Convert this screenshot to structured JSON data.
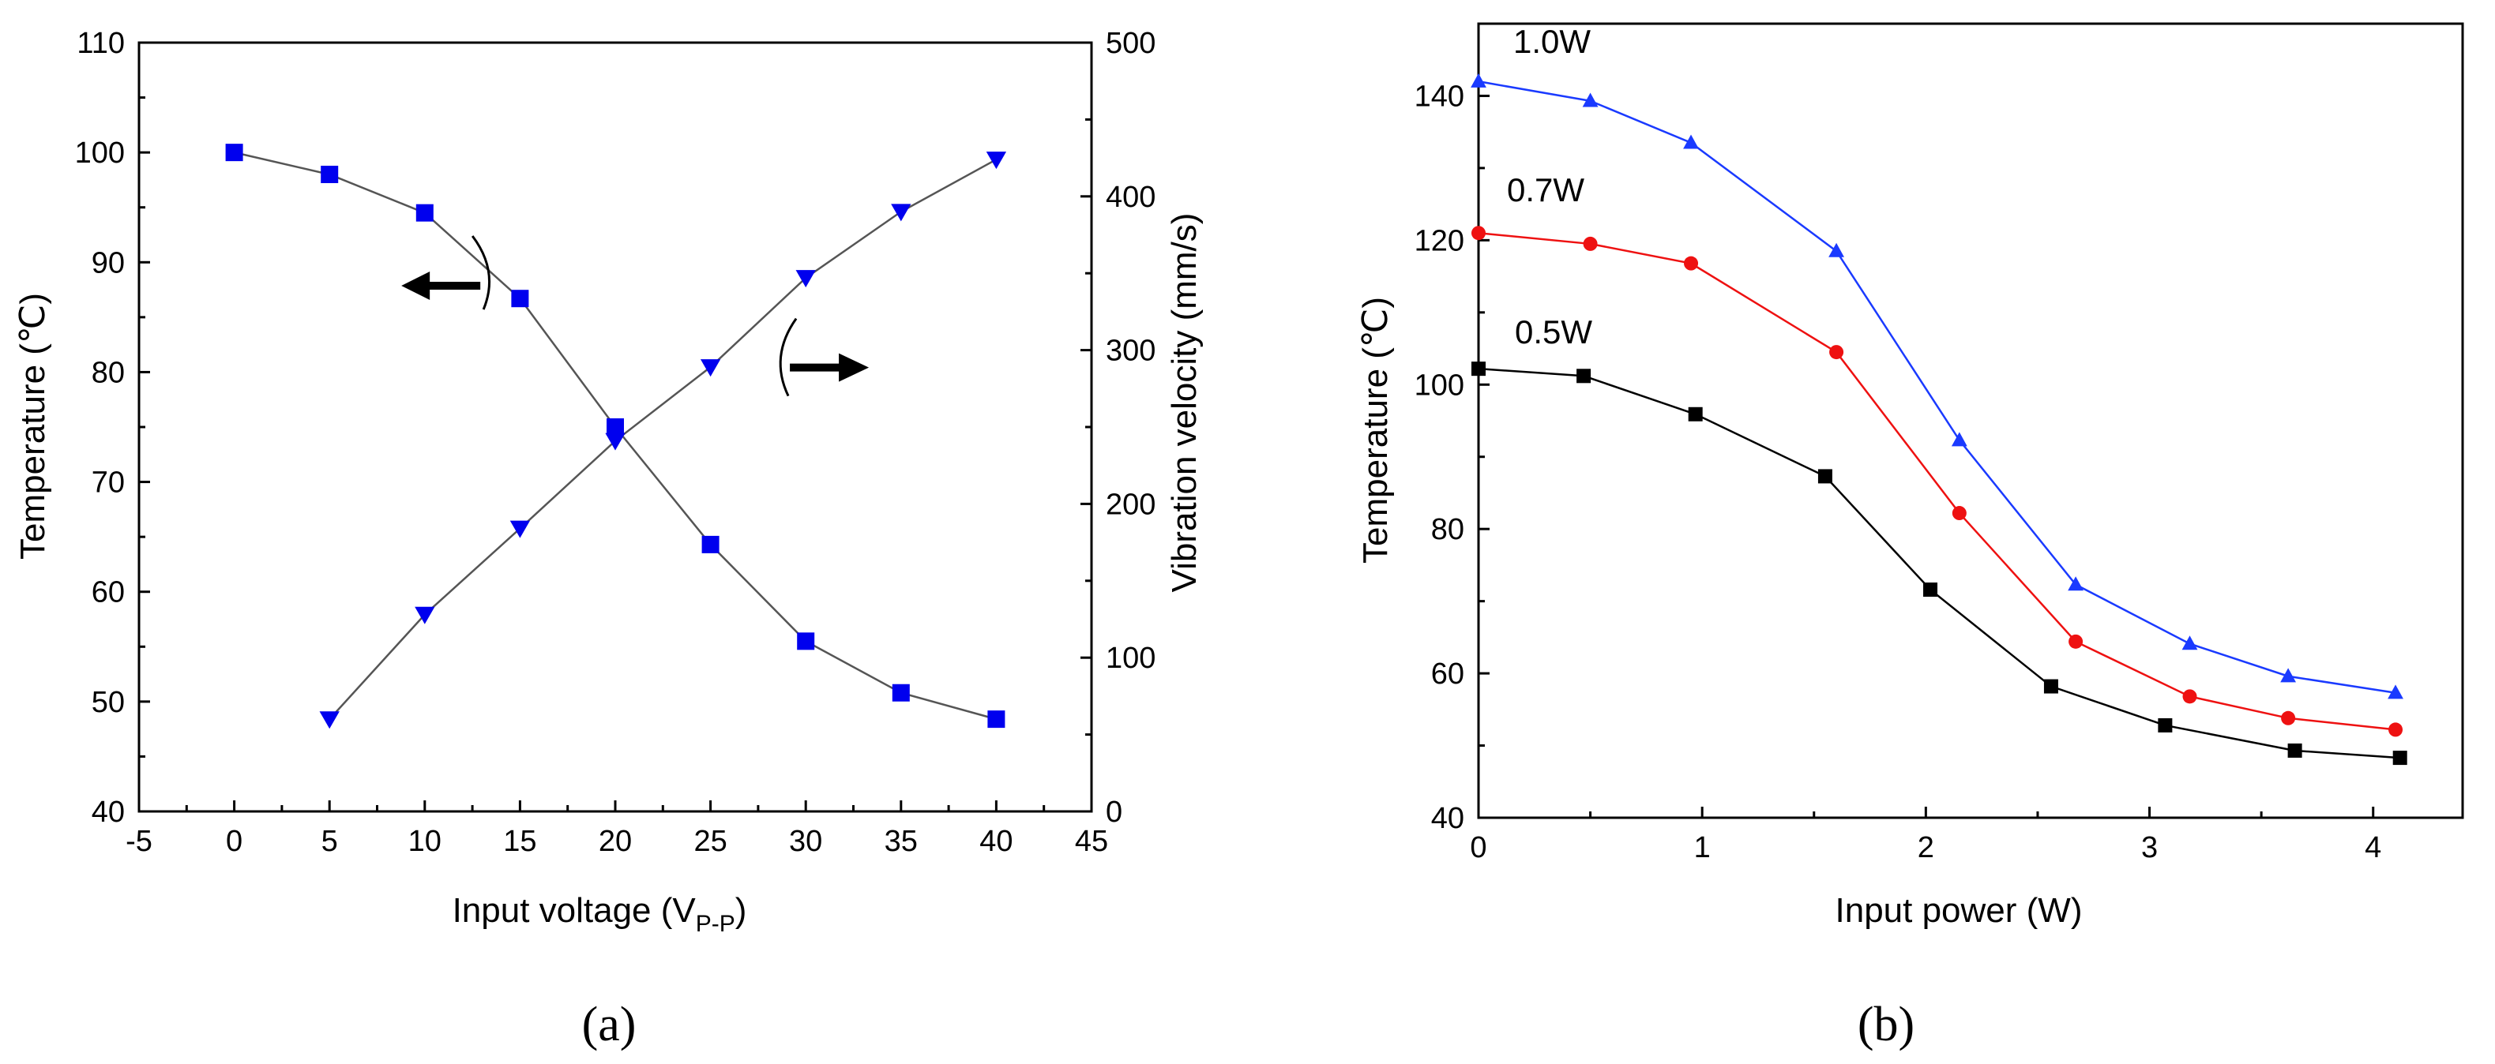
{
  "chart_data": [
    {
      "type": "line",
      "panel_label": "(a)",
      "xlabel": "Input voltage (V",
      "xlabel_sub": "P-P",
      "xlabel_close": ")",
      "ylabel_left": "Temperature (℃)",
      "ylabel_right": "Vibration velocity (mm/s)",
      "xlim": [
        -5,
        45
      ],
      "ylim_left": [
        40,
        110
      ],
      "ylim_right": [
        0,
        500
      ],
      "xticks": [
        -5,
        0,
        5,
        10,
        15,
        20,
        25,
        30,
        35,
        40,
        45
      ],
      "yticks_left": [
        40,
        50,
        60,
        70,
        80,
        90,
        100,
        110
      ],
      "yticks_right": [
        0,
        100,
        200,
        300,
        400,
        500
      ],
      "series": [
        {
          "name": "Temperature",
          "axis": "left",
          "marker": "square",
          "color": "#0000ee",
          "x": [
            0,
            5,
            10,
            15,
            20,
            25,
            30,
            35,
            40
          ],
          "y": [
            100,
            98,
            94.5,
            86.7,
            75,
            64.3,
            55.5,
            50.8,
            48.4
          ]
        },
        {
          "name": "Vibration velocity",
          "axis": "right",
          "marker": "triangle-down",
          "color": "#0000ee",
          "x": [
            5,
            10,
            15,
            20,
            25,
            30,
            35,
            40
          ],
          "y": [
            60,
            128,
            184,
            241,
            289,
            347,
            390,
            424
          ]
        }
      ],
      "annotations": [
        {
          "type": "arrow",
          "direction": "left",
          "points_to": "left axis",
          "near_x": 13,
          "near_y": 87
        },
        {
          "type": "arrow",
          "direction": "right",
          "points_to": "right axis",
          "near_x": 29,
          "near_y": 82
        }
      ]
    },
    {
      "type": "line",
      "panel_label": "(b)",
      "xlabel": "Input power (W)",
      "ylabel": "Temperature (℃)",
      "xlim": [
        0,
        4.4
      ],
      "ylim": [
        40,
        150
      ],
      "xticks": [
        0,
        1,
        2,
        3,
        4
      ],
      "yticks": [
        40,
        60,
        80,
        100,
        120,
        140
      ],
      "series": [
        {
          "name": "1.0W",
          "marker": "triangle-up",
          "color": "#1a3aff",
          "x": [
            0,
            0.5,
            0.95,
            1.6,
            2.15,
            2.67,
            3.18,
            3.62,
            4.1
          ],
          "y": [
            142,
            139.3,
            133.5,
            118.5,
            92.3,
            72.3,
            64.1,
            59.6,
            57.3
          ]
        },
        {
          "name": "0.7W",
          "marker": "circle",
          "color": "#ee1111",
          "x": [
            0,
            0.5,
            0.95,
            1.6,
            2.15,
            2.67,
            3.18,
            3.62,
            4.1
          ],
          "y": [
            121,
            119.5,
            116.8,
            104.5,
            82.2,
            64.4,
            56.8,
            53.8,
            52.2
          ]
        },
        {
          "name": "0.5W",
          "marker": "square",
          "color": "#000000",
          "x": [
            0,
            0.47,
            0.97,
            1.55,
            2.02,
            2.56,
            3.07,
            3.65,
            4.12
          ],
          "y": [
            102.2,
            101.2,
            95.9,
            87.3,
            71.6,
            58.2,
            52.8,
            49.3,
            48.3
          ]
        }
      ]
    }
  ]
}
